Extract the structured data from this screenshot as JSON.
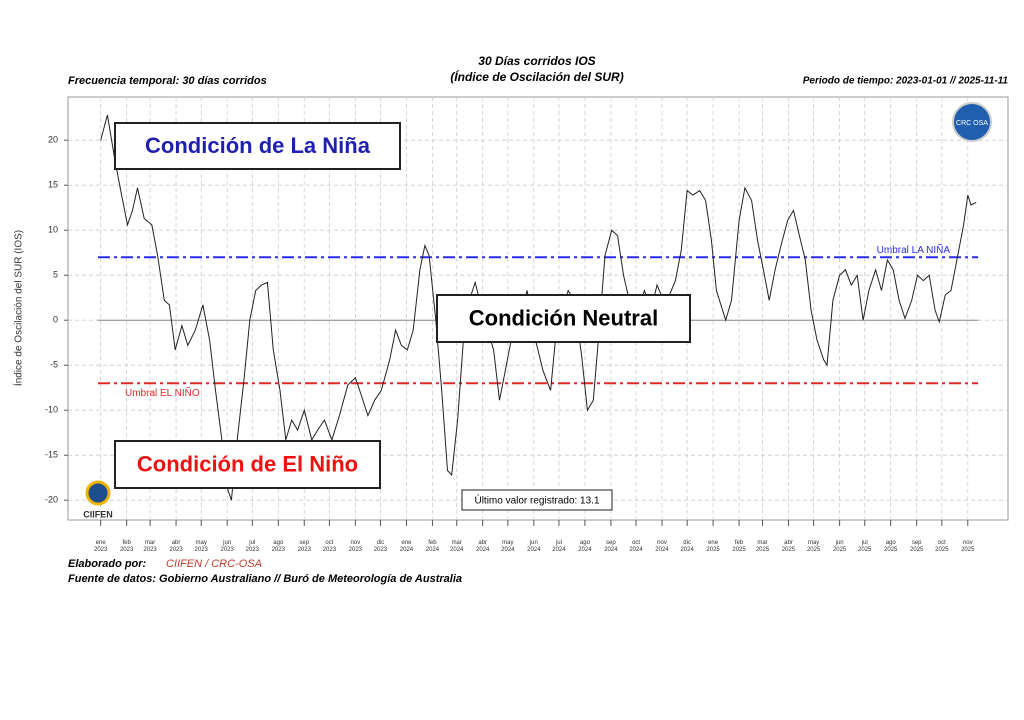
{
  "chart_data": {
    "type": "line",
    "title": "30 Días corridos IOS",
    "subtitle": "(Índice de Oscilación del SUR)",
    "left_note": "Frecuencia temporal: 30 días corridos",
    "right_note": "Periodo de tiempo: 2023-01-01 // 2025-11-11",
    "y_label": "Índice de Oscilación del SUR (IOS)",
    "footer_label": "Elaborado por:",
    "footer_org": "CIIFEN / CRC-OSA",
    "footer_source": "Fuente de datos: Gobierno Australiano // Buró de Meteorología de Australia",
    "logos": [
      "CIIFEN",
      "CRC OSA"
    ],
    "color": "#222222",
    "grid": true,
    "xlim": [
      "2022-11-23",
      "2025-12-19"
    ],
    "ylim": [
      -22.2,
      24.8
    ],
    "yticks": [
      -20,
      -15,
      -10,
      -5,
      0,
      5,
      10,
      15,
      20
    ],
    "xticks": [
      {
        "value": "2023-01-01",
        "label": "ene\n2023"
      },
      {
        "value": "2023-02-01",
        "label": "feb\n2023"
      },
      {
        "value": "2023-03-01",
        "label": "mar\n2023"
      },
      {
        "value": "2023-04-01",
        "label": "abr\n2023"
      },
      {
        "value": "2023-05-01",
        "label": "may\n2023"
      },
      {
        "value": "2023-06-01",
        "label": "jun\n2023"
      },
      {
        "value": "2023-07-01",
        "label": "jul\n2023"
      },
      {
        "value": "2023-08-01",
        "label": "ago\n2023"
      },
      {
        "value": "2023-09-01",
        "label": "sep\n2023"
      },
      {
        "value": "2023-10-01",
        "label": "oct\n2023"
      },
      {
        "value": "2023-11-01",
        "label": "nov\n2023"
      },
      {
        "value": "2023-12-01",
        "label": "dic\n2023"
      },
      {
        "value": "2024-01-01",
        "label": "ene\n2024"
      },
      {
        "value": "2024-02-01",
        "label": "feb\n2024"
      },
      {
        "value": "2024-03-01",
        "label": "mar\n2024"
      },
      {
        "value": "2024-04-01",
        "label": "abr\n2024"
      },
      {
        "value": "2024-05-01",
        "label": "may\n2024"
      },
      {
        "value": "2024-06-01",
        "label": "jun\n2024"
      },
      {
        "value": "2024-07-01",
        "label": "jul\n2024"
      },
      {
        "value": "2024-08-01",
        "label": "ago\n2024"
      },
      {
        "value": "2024-09-01",
        "label": "sep\n2024"
      },
      {
        "value": "2024-10-01",
        "label": "oct\n2024"
      },
      {
        "value": "2024-11-01",
        "label": "nov\n2024"
      },
      {
        "value": "2024-12-01",
        "label": "dic\n2024"
      },
      {
        "value": "2025-01-01",
        "label": "ene\n2025"
      },
      {
        "value": "2025-02-01",
        "label": "feb\n2025"
      },
      {
        "value": "2025-03-01",
        "label": "mar\n2025"
      },
      {
        "value": "2025-04-01",
        "label": "abr\n2025"
      },
      {
        "value": "2025-05-01",
        "label": "may\n2025"
      },
      {
        "value": "2025-06-01",
        "label": "jun\n2025"
      },
      {
        "value": "2025-07-01",
        "label": "jul\n2025"
      },
      {
        "value": "2025-08-01",
        "label": "ago\n2025"
      },
      {
        "value": "2025-09-01",
        "label": "sep\n2025"
      },
      {
        "value": "2025-10-01",
        "label": "oct\n2025"
      },
      {
        "value": "2025-11-01",
        "label": "nov\n2025"
      }
    ],
    "thresholds": [
      {
        "value": 7,
        "label": "Umbral LA NIÑA",
        "color": "#2a2aee"
      },
      {
        "value": -7,
        "label": "Umbral EL NIÑO",
        "color": "#e02a2a"
      }
    ],
    "zero_line": 0,
    "annotations": [
      {
        "text": "Condición de La Niña",
        "color": "#1f1fb0"
      },
      {
        "text": "Condición Neutral",
        "color": "#000000"
      },
      {
        "text": "Condición de El Niño",
        "color": "#ee1111"
      },
      {
        "text": "Último valor registrado: 13.1",
        "color": "#000000"
      }
    ],
    "x": [
      "2023-01-01",
      "2023-01-09",
      "2023-01-18",
      "2023-01-26",
      "2023-02-02",
      "2023-02-08",
      "2023-02-14",
      "2023-02-22",
      "2023-03-03",
      "2023-03-10",
      "2023-03-18",
      "2023-03-24",
      "2023-03-31",
      "2023-04-08",
      "2023-04-15",
      "2023-04-24",
      "2023-05-03",
      "2023-05-11",
      "2023-05-18",
      "2023-05-25",
      "2023-06-02",
      "2023-06-06",
      "2023-06-13",
      "2023-06-21",
      "2023-06-28",
      "2023-07-05",
      "2023-07-12",
      "2023-07-19",
      "2023-07-26",
      "2023-08-03",
      "2023-08-10",
      "2023-08-17",
      "2023-08-24",
      "2023-09-01",
      "2023-09-10",
      "2023-09-17",
      "2023-09-25",
      "2023-10-04",
      "2023-10-13",
      "2023-10-23",
      "2023-11-01",
      "2023-11-08",
      "2023-11-16",
      "2023-11-24",
      "2023-12-02",
      "2023-12-12",
      "2023-12-19",
      "2023-12-26",
      "2024-01-02",
      "2024-01-09",
      "2024-01-17",
      "2024-01-23",
      "2024-01-28",
      "2024-02-05",
      "2024-02-12",
      "2024-02-19",
      "2024-02-24",
      "2024-03-02",
      "2024-03-09",
      "2024-03-16",
      "2024-03-23",
      "2024-03-31",
      "2024-04-07",
      "2024-04-14",
      "2024-04-21",
      "2024-04-28",
      "2024-05-05",
      "2024-05-15",
      "2024-05-24",
      "2024-06-03",
      "2024-06-12",
      "2024-06-21",
      "2024-06-28",
      "2024-07-05",
      "2024-07-12",
      "2024-07-19",
      "2024-07-28",
      "2024-08-04",
      "2024-08-11",
      "2024-08-18",
      "2024-08-25",
      "2024-09-02",
      "2024-09-09",
      "2024-09-16",
      "2024-09-23",
      "2024-10-03",
      "2024-10-11",
      "2024-10-19",
      "2024-10-26",
      "2024-11-03",
      "2024-11-10",
      "2024-11-17",
      "2024-11-24",
      "2024-12-01",
      "2024-12-08",
      "2024-12-16",
      "2024-12-23",
      "2024-12-30",
      "2025-01-05",
      "2025-01-16",
      "2025-01-23",
      "2025-02-01",
      "2025-02-08",
      "2025-02-16",
      "2025-02-23",
      "2025-03-02",
      "2025-03-09",
      "2025-03-16",
      "2025-03-23",
      "2025-03-31",
      "2025-04-07",
      "2025-04-14",
      "2025-04-21",
      "2025-04-28",
      "2025-05-05",
      "2025-05-13",
      "2025-05-17",
      "2025-05-24",
      "2025-06-01",
      "2025-06-08",
      "2025-06-15",
      "2025-06-22",
      "2025-06-29",
      "2025-07-06",
      "2025-07-14",
      "2025-07-21",
      "2025-07-28",
      "2025-08-04",
      "2025-08-11",
      "2025-08-18",
      "2025-08-26",
      "2025-09-02",
      "2025-09-09",
      "2025-09-16",
      "2025-09-23",
      "2025-09-28",
      "2025-10-05",
      "2025-10-12",
      "2025-10-19",
      "2025-10-27",
      "2025-11-01",
      "2025-11-05",
      "2025-11-11"
    ],
    "values": [
      20,
      22.8,
      17.8,
      13.9,
      10.6,
      12.2,
      14.7,
      11.3,
      10.6,
      7.2,
      2.2,
      1.7,
      -3.3,
      -0.6,
      -2.8,
      -1.1,
      1.7,
      -2.2,
      -7.8,
      -12.8,
      -18.9,
      -20,
      -13.3,
      -6.7,
      0,
      3.3,
      3.9,
      4.2,
      -3.3,
      -7.8,
      -13.3,
      -11.1,
      -12.2,
      -10,
      -13.3,
      -12.2,
      -11.1,
      -13.3,
      -10.6,
      -7.2,
      -6.4,
      -8.3,
      -10.6,
      -8.9,
      -7.8,
      -4.4,
      -1.1,
      -2.8,
      -3.3,
      -1.1,
      5.6,
      8.3,
      7.2,
      0,
      -7.8,
      -16.7,
      -17.2,
      -11.1,
      -2.2,
      2.2,
      4.2,
      1.1,
      -1.1,
      -3.3,
      -8.9,
      -5.6,
      -2.2,
      0,
      3.3,
      -2.2,
      -5.6,
      -7.8,
      -1.1,
      1.1,
      3.3,
      2.2,
      -3.9,
      -10,
      -8.9,
      -1.1,
      7.2,
      10,
      9.4,
      5,
      2.2,
      1.1,
      3.3,
      1.1,
      3.9,
      2.2,
      2.8,
      4.4,
      7.8,
      14.4,
      13.9,
      14.4,
      13.3,
      8.9,
      3.3,
      0,
      2.2,
      11.1,
      14.7,
      13.3,
      8.9,
      5.6,
      2.2,
      5.6,
      8.3,
      11.1,
      12.2,
      9.4,
      6.7,
      1.1,
      -2.2,
      -4.4,
      -5,
      2.2,
      5,
      5.6,
      3.9,
      5,
      0,
      3.3,
      5.6,
      3.3,
      6.7,
      5.6,
      2.2,
      0.2,
      2.2,
      5,
      4.4,
      5,
      1.1,
      -0.2,
      2.8,
      3.3,
      6.7,
      10.6,
      13.9,
      12.8,
      13.1
    ]
  }
}
